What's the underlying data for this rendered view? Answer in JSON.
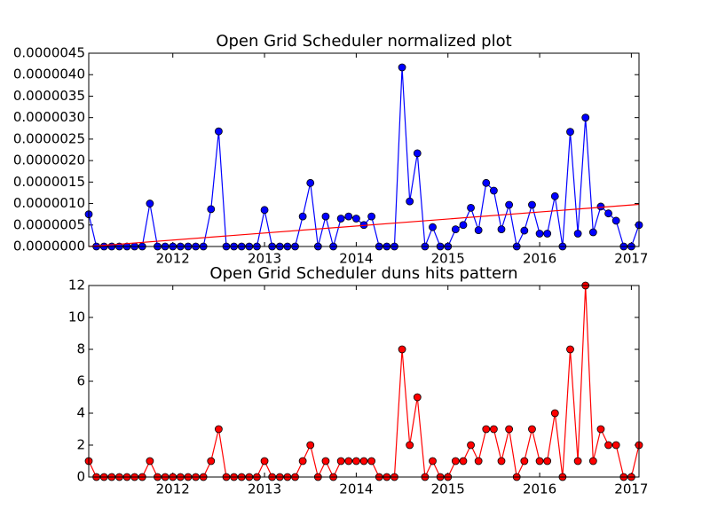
{
  "chart_data": [
    {
      "type": "line",
      "title": "Open Grid Scheduler normalized plot",
      "x": [
        2011.0833,
        2011.1667,
        2011.25,
        2011.3333,
        2011.4167,
        2011.5,
        2011.5833,
        2011.6667,
        2011.75,
        2011.8333,
        2011.9167,
        2012,
        2012.0833,
        2012.1667,
        2012.25,
        2012.3333,
        2012.4167,
        2012.5,
        2012.5833,
        2012.6667,
        2012.75,
        2012.8333,
        2012.9167,
        2013,
        2013.0833,
        2013.1667,
        2013.25,
        2013.3333,
        2013.4167,
        2013.5,
        2013.5833,
        2013.6667,
        2013.75,
        2013.8333,
        2013.9167,
        2014,
        2014.0833,
        2014.1667,
        2014.25,
        2014.3333,
        2014.4167,
        2014.5,
        2014.5833,
        2014.6667,
        2014.75,
        2014.8333,
        2014.9167,
        2015,
        2015.0833,
        2015.1667,
        2015.25,
        2015.3333,
        2015.4167,
        2015.5,
        2015.5833,
        2015.6667,
        2015.75,
        2015.8333,
        2015.9167,
        2016,
        2016.0833,
        2016.1667,
        2016.25,
        2016.3333,
        2016.4167,
        2016.5,
        2016.5833,
        2016.6667,
        2016.75,
        2016.8333,
        2016.9167,
        2017,
        2017.0833
      ],
      "values": [
        7.5e-07,
        0,
        0,
        0,
        0,
        0,
        0,
        0,
        1e-06,
        0,
        0,
        0,
        0,
        0,
        0,
        0,
        8.7e-07,
        2.68e-06,
        0,
        0,
        0,
        0,
        0,
        8.5e-07,
        0,
        0,
        0,
        0,
        7e-07,
        1.48e-06,
        0,
        7e-07,
        0,
        6.5e-07,
        7e-07,
        6.5e-07,
        5e-07,
        7e-07,
        0,
        0,
        0,
        4.17e-06,
        1.05e-06,
        2.17e-06,
        0,
        4.5e-07,
        0,
        0,
        4e-07,
        5e-07,
        9e-07,
        3.8e-07,
        1.48e-06,
        1.3e-06,
        4e-07,
        9.7e-07,
        0,
        3.7e-07,
        9.7e-07,
        3e-07,
        3e-07,
        1.17e-06,
        0,
        2.67e-06,
        3e-07,
        3e-06,
        3.3e-07,
        9.3e-07,
        7.7e-07,
        6e-07,
        0,
        0,
        5e-07
      ],
      "color": "#0000ff",
      "trend": {
        "x": [
          2011.0833,
          2017.0833
        ],
        "values": [
          0,
          9.8e-07
        ],
        "color": "#ff0000"
      },
      "xlim": [
        2011.0833,
        2017.0833
      ],
      "xticks": [
        2012,
        2013,
        2014,
        2015,
        2016,
        2017
      ],
      "ylim": [
        0,
        4.5e-06
      ],
      "yticks": [
        {
          "value": 0,
          "label": "0.0000000"
        },
        {
          "value": 5e-07,
          "label": "0.0000005"
        },
        {
          "value": 1e-06,
          "label": "0.0000010"
        },
        {
          "value": 1.5e-06,
          "label": "0.0000015"
        },
        {
          "value": 2e-06,
          "label": "0.0000020"
        },
        {
          "value": 2.5e-06,
          "label": "0.0000025"
        },
        {
          "value": 3e-06,
          "label": "0.0000030"
        },
        {
          "value": 3.5e-06,
          "label": "0.0000035"
        },
        {
          "value": 4e-06,
          "label": "0.0000040"
        },
        {
          "value": 4.5e-06,
          "label": "0.0000045"
        }
      ]
    },
    {
      "type": "line",
      "title": "Open Grid Scheduler duns hits pattern",
      "x": [
        2011.0833,
        2011.1667,
        2011.25,
        2011.3333,
        2011.4167,
        2011.5,
        2011.5833,
        2011.6667,
        2011.75,
        2011.8333,
        2011.9167,
        2012,
        2012.0833,
        2012.1667,
        2012.25,
        2012.3333,
        2012.4167,
        2012.5,
        2012.5833,
        2012.6667,
        2012.75,
        2012.8333,
        2012.9167,
        2013,
        2013.0833,
        2013.1667,
        2013.25,
        2013.3333,
        2013.4167,
        2013.5,
        2013.5833,
        2013.6667,
        2013.75,
        2013.8333,
        2013.9167,
        2014,
        2014.0833,
        2014.1667,
        2014.25,
        2014.3333,
        2014.4167,
        2014.5,
        2014.5833,
        2014.6667,
        2014.75,
        2014.8333,
        2014.9167,
        2015,
        2015.0833,
        2015.1667,
        2015.25,
        2015.3333,
        2015.4167,
        2015.5,
        2015.5833,
        2015.6667,
        2015.75,
        2015.8333,
        2015.9167,
        2016,
        2016.0833,
        2016.1667,
        2016.25,
        2016.3333,
        2016.4167,
        2016.5,
        2016.5833,
        2016.6667,
        2016.75,
        2016.8333,
        2016.9167,
        2017,
        2017.0833
      ],
      "values": [
        1,
        0,
        0,
        0,
        0,
        0,
        0,
        0,
        1,
        0,
        0,
        0,
        0,
        0,
        0,
        0,
        1,
        3,
        0,
        0,
        0,
        0,
        0,
        1,
        0,
        0,
        0,
        0,
        1,
        2,
        0,
        1,
        0,
        1,
        1,
        1,
        1,
        1,
        0,
        0,
        0,
        8,
        2,
        5,
        0,
        1,
        0,
        0,
        1,
        1,
        2,
        1,
        3,
        3,
        1,
        3,
        0,
        1,
        3,
        1,
        1,
        4,
        0,
        8,
        1,
        12,
        1,
        3,
        2,
        2,
        0,
        0,
        2
      ],
      "color": "#ff0000",
      "xlim": [
        2011.0833,
        2017.0833
      ],
      "xticks": [
        2012,
        2013,
        2014,
        2015,
        2016,
        2017
      ],
      "ylim": [
        0,
        12
      ],
      "yticks": [
        0,
        2,
        4,
        6,
        8,
        10,
        12
      ]
    }
  ]
}
